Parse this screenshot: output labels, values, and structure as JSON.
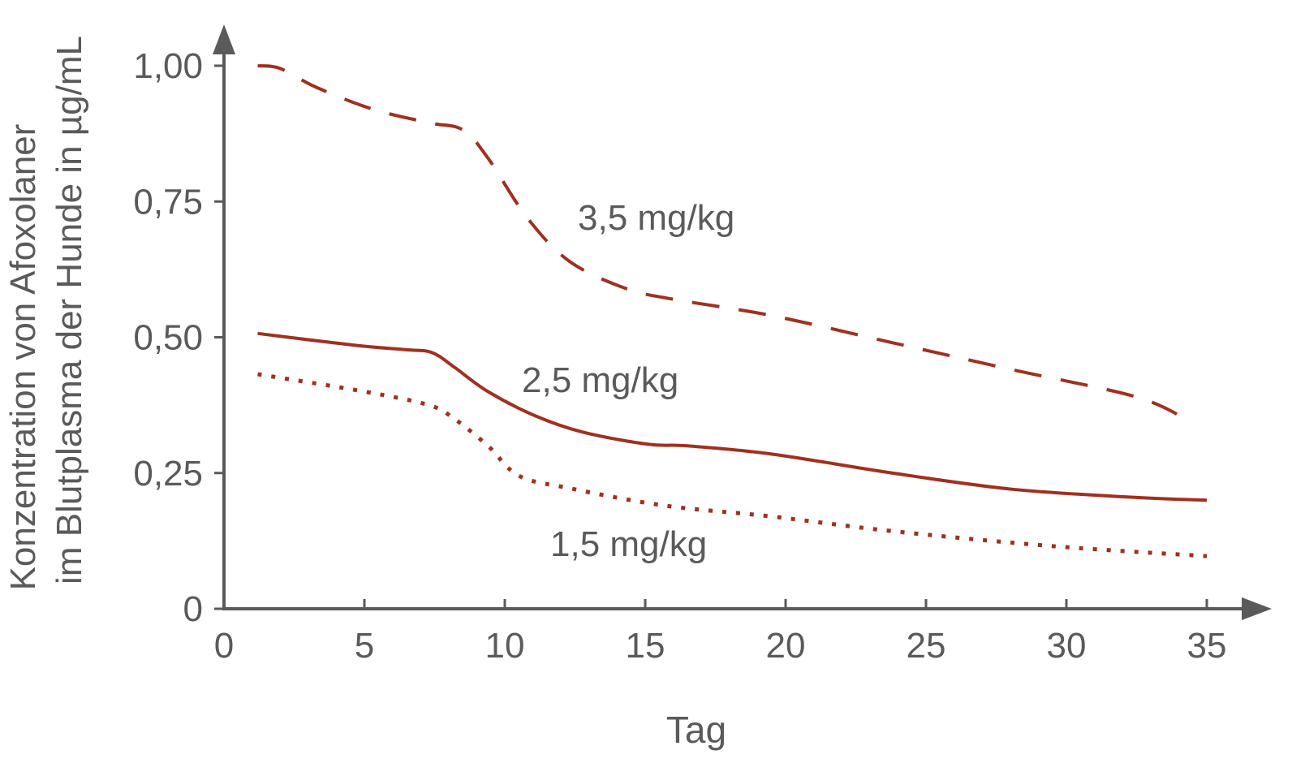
{
  "chart_data": {
    "type": "line",
    "title": "",
    "xlabel": "Tag",
    "ylabel_lines": [
      "Konzentration von Afoxolaner",
      "im Blutplasma der Hunde in µg/mL"
    ],
    "xlim": [
      0,
      35
    ],
    "ylim": [
      0,
      1.0
    ],
    "x_ticks": [
      0,
      5,
      10,
      15,
      20,
      25,
      30,
      35
    ],
    "x_tick_labels": [
      "0",
      "5",
      "10",
      "15",
      "20",
      "25",
      "30",
      "35"
    ],
    "y_ticks": [
      0,
      0.25,
      0.5,
      0.75,
      1.0
    ],
    "y_tick_labels": [
      "0",
      "0,25",
      "0,50",
      "0,75",
      "1,00"
    ],
    "grid": false,
    "line_color": "#A0301F",
    "axis_color": "#5a5a5a",
    "series": [
      {
        "name": "3,5 mg/kg",
        "style": "dashed",
        "x": [
          1.2,
          2.0,
          3.3,
          5.3,
          7.3,
          8.5,
          9.4,
          10.8,
          12.3,
          14.3,
          16.0,
          19.5,
          23.8,
          28.1,
          32.5,
          34.4
        ],
        "y": [
          1.0,
          0.995,
          0.96,
          0.92,
          0.895,
          0.882,
          0.83,
          0.72,
          0.64,
          0.59,
          0.57,
          0.54,
          0.49,
          0.44,
          0.39,
          0.345
        ]
      },
      {
        "name": "2,5 mg/kg",
        "style": "solid",
        "x": [
          1.2,
          4.7,
          6.5,
          7.4,
          8.2,
          9.4,
          11.1,
          12.8,
          15.1,
          16.5,
          19.5,
          23.8,
          28.1,
          32.5,
          35.0
        ],
        "y": [
          0.507,
          0.485,
          0.477,
          0.472,
          0.445,
          0.4,
          0.355,
          0.325,
          0.303,
          0.3,
          0.285,
          0.25,
          0.22,
          0.205,
          0.2
        ]
      },
      {
        "name": "1,5 mg/kg",
        "style": "dotted",
        "x": [
          1.2,
          5.0,
          7.3,
          8.2,
          9.4,
          10.5,
          12.3,
          15.7,
          19.5,
          23.8,
          29.6,
          35.0
        ],
        "y": [
          0.432,
          0.4,
          0.375,
          0.35,
          0.3,
          0.245,
          0.222,
          0.19,
          0.17,
          0.143,
          0.115,
          0.097
        ]
      }
    ]
  }
}
